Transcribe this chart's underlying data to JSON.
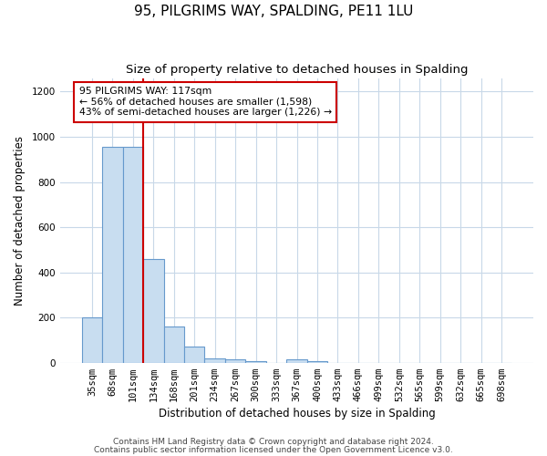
{
  "title": "95, PILGRIMS WAY, SPALDING, PE11 1LU",
  "subtitle": "Size of property relative to detached houses in Spalding",
  "xlabel": "Distribution of detached houses by size in Spalding",
  "ylabel": "Number of detached properties",
  "categories": [
    "35sqm",
    "68sqm",
    "101sqm",
    "134sqm",
    "168sqm",
    "201sqm",
    "234sqm",
    "267sqm",
    "300sqm",
    "333sqm",
    "367sqm",
    "400sqm",
    "433sqm",
    "466sqm",
    "499sqm",
    "532sqm",
    "565sqm",
    "599sqm",
    "632sqm",
    "665sqm",
    "698sqm"
  ],
  "values": [
    200,
    955,
    955,
    460,
    160,
    70,
    20,
    15,
    5,
    0,
    15,
    5,
    0,
    0,
    0,
    0,
    0,
    0,
    0,
    0,
    0
  ],
  "bar_color": "#c8ddf0",
  "bar_edge_color": "#6699cc",
  "redline_x": 2.5,
  "annotation_text": "95 PILGRIMS WAY: 117sqm\n← 56% of detached houses are smaller (1,598)\n43% of semi-detached houses are larger (1,226) →",
  "annotation_box_color": "#ffffff",
  "annotation_box_edge": "#cc0000",
  "redline_color": "#cc0000",
  "footer1": "Contains HM Land Registry data © Crown copyright and database right 2024.",
  "footer2": "Contains public sector information licensed under the Open Government Licence v3.0.",
  "ylim": [
    0,
    1260
  ],
  "yticks": [
    0,
    200,
    400,
    600,
    800,
    1000,
    1200
  ],
  "grid_color": "#c8d8e8",
  "bg_color": "#ffffff",
  "title_fontsize": 11,
  "subtitle_fontsize": 9.5,
  "label_fontsize": 8.5,
  "tick_fontsize": 7.5,
  "footer_fontsize": 6.5,
  "annot_fontsize": 7.8
}
